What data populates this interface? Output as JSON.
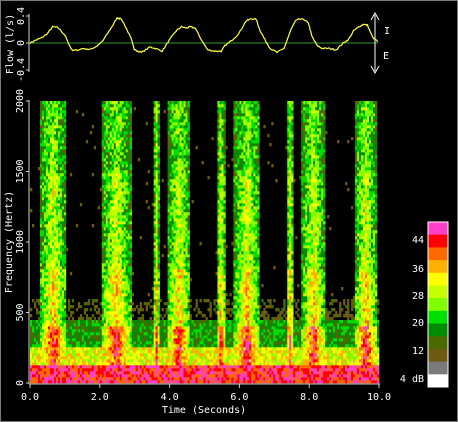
{
  "chart_data": [
    {
      "type": "line",
      "name": "flow",
      "ylabel": "Flow (l/s)",
      "yticks": [
        "-0.4",
        "0",
        "0.4"
      ],
      "ylim": [
        -0.4,
        0.4
      ],
      "xlim": [
        0,
        10
      ],
      "direction_labels": {
        "up": "I",
        "down": "E"
      },
      "line_color": "#ffff40",
      "zero_line_color": "#2f9a2f",
      "inspiration_peaks_s": [
        0.95,
        2.75,
        4.55,
        6.55,
        8.05,
        9.55
      ],
      "series": [
        {
          "x": [
            0.0,
            0.2,
            0.35,
            0.5,
            0.65,
            0.8,
            1.0,
            1.1,
            1.2,
            1.35,
            1.5,
            1.7,
            1.9,
            2.1,
            2.3,
            2.5,
            2.6,
            2.75,
            2.9,
            3.0,
            3.2,
            3.45,
            3.6,
            3.8,
            4.0,
            4.2,
            4.35,
            4.5,
            4.6,
            4.75,
            4.9,
            5.1,
            5.3,
            5.5,
            5.6,
            5.8,
            6.0,
            6.2,
            6.35,
            6.5,
            6.6,
            6.75,
            6.9,
            7.1,
            7.3,
            7.5,
            7.65,
            7.8,
            8.0,
            8.1,
            8.25,
            8.4,
            8.6,
            8.8,
            9.0,
            9.15,
            9.3,
            9.45,
            9.6,
            9.7,
            9.85,
            10.0
          ],
          "y": [
            0.0,
            0.05,
            0.08,
            0.14,
            0.24,
            0.23,
            0.12,
            0.0,
            -0.1,
            -0.11,
            -0.08,
            -0.1,
            -0.06,
            0.04,
            0.2,
            0.37,
            0.36,
            0.24,
            0.08,
            -0.1,
            -0.14,
            -0.06,
            -0.08,
            -0.12,
            0.04,
            0.18,
            0.24,
            0.22,
            0.24,
            0.22,
            0.07,
            -0.1,
            -0.12,
            -0.12,
            -0.04,
            0.04,
            0.14,
            0.32,
            0.36,
            0.35,
            0.2,
            0.05,
            -0.08,
            -0.14,
            -0.08,
            0.2,
            0.34,
            0.36,
            0.3,
            0.1,
            -0.04,
            -0.08,
            -0.08,
            -0.1,
            0.0,
            0.05,
            0.18,
            0.24,
            0.28,
            0.26,
            0.08,
            0.02
          ]
        }
      ]
    },
    {
      "type": "heatmap",
      "name": "spectrogram",
      "xlabel": "Time (Seconds)",
      "ylabel": "Frequency (Hertz)",
      "xticks": [
        "0.0",
        "2.0",
        "4.0",
        "6.0",
        "8.0",
        "10.0"
      ],
      "yticks": [
        "0",
        "500",
        "1000",
        "1500",
        "2000"
      ],
      "xlim": [
        0,
        10
      ],
      "ylim": [
        0,
        2000
      ],
      "active_bands_s": [
        [
          0.3,
          1.05
        ],
        [
          2.05,
          2.9
        ],
        [
          3.55,
          3.7
        ],
        [
          3.95,
          4.6
        ],
        [
          5.35,
          5.6
        ],
        [
          5.85,
          6.6
        ],
        [
          7.35,
          7.55
        ],
        [
          7.8,
          8.45
        ],
        [
          9.3,
          9.95
        ]
      ],
      "colorbar": {
        "unit_label": "4 dB",
        "tick_labels": [
          "44",
          "36",
          "28",
          "20",
          "12",
          "4 dB"
        ],
        "colors": [
          "#ff3fc8",
          "#ff0000",
          "#ff6a00",
          "#ffb000",
          "#ffff00",
          "#c8ff00",
          "#80ff00",
          "#00e000",
          "#008c00",
          "#4a6a00",
          "#6e5a10",
          "#7a7a7a",
          "#ffffff"
        ]
      }
    }
  ]
}
